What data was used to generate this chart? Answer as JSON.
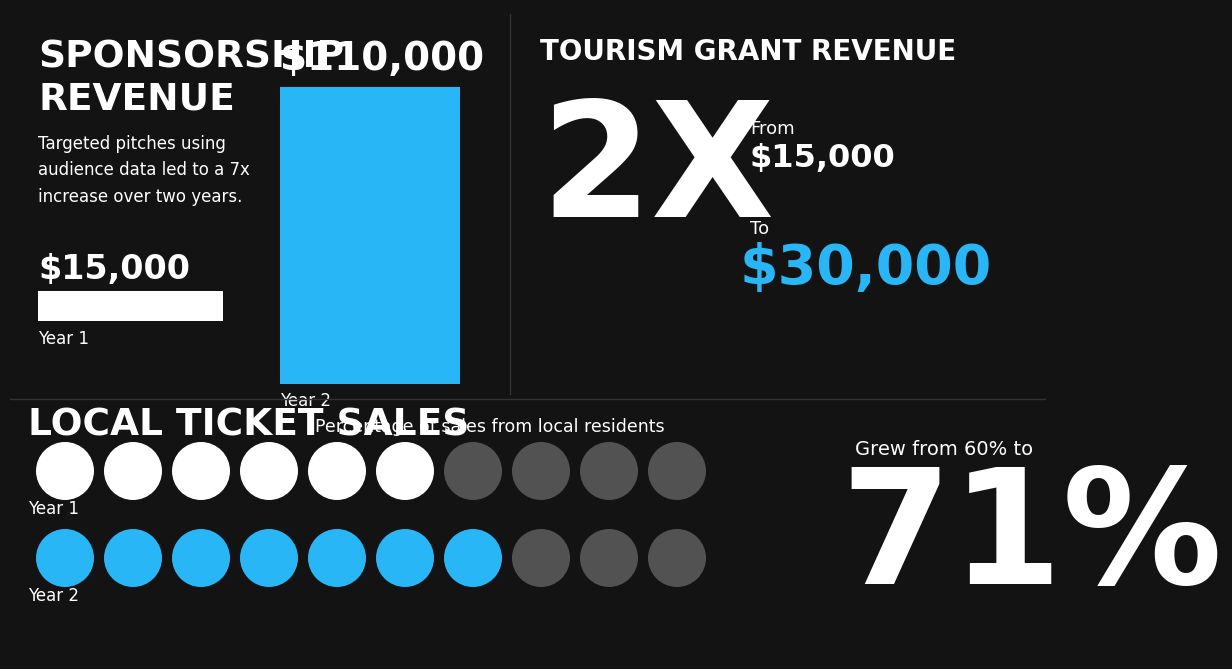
{
  "bg_color": "#131313",
  "blue_color": "#29b6f6",
  "white_color": "#ffffff",
  "gray_color": "#555555",
  "spons_title_line1": "SPONSORSHIP",
  "spons_title_line2": "REVENUE",
  "spons_desc": "Targeted pitches using\naudience data led to a 7x\nincrease over two years.",
  "spons_yr1_label": "$15,000",
  "spons_yr2_label": "$110,000",
  "spons_year1": "Year 1",
  "spons_year2": "Year 2",
  "tourism_title": "TOURISM GRANT REVENUE",
  "tourism_multiplier": "2X",
  "tourism_from_label": "From",
  "tourism_from_value": "$15,000",
  "tourism_to_label": "To",
  "tourism_to_value": "$30,000",
  "ticket_title": "LOCAL TICKET SALES",
  "ticket_subtitle": "Percentage of sales from local residents",
  "ticket_year1": "Year 1",
  "ticket_year2": "Year 2",
  "ticket_grew": "Grew from 60% to",
  "ticket_pct": "71%",
  "ticket_yr1_filled": 6,
  "ticket_yr1_total": 10,
  "ticket_yr2_filled": 7,
  "ticket_yr2_total": 10
}
